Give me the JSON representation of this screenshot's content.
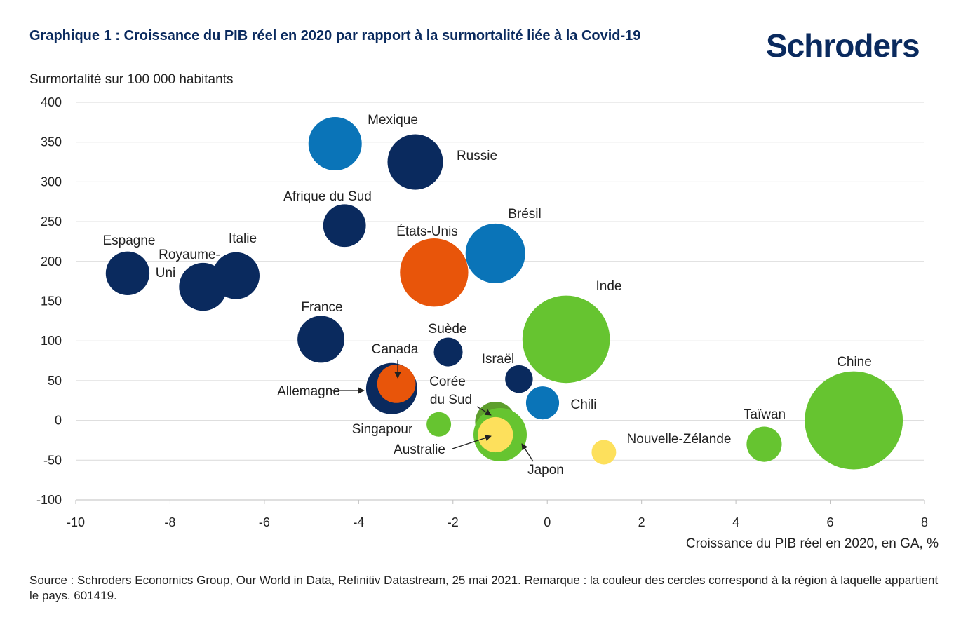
{
  "title": "Graphique 1 : Croissance du PIB réel en 2020 par rapport à la surmortalité liée à la Covid-19",
  "logo_text": "Schroders",
  "source": "Source : Schroders Economics Group, Our World in Data, Refinitiv Datastream, 25 mai 2021. Remarque : la couleur des cercles correspond à la région à laquelle appartient le pays. 601419.",
  "colors": {
    "navy": "#0a2a5e",
    "blue": "#0a74b8",
    "orange": "#e8550a",
    "green": "#66c430",
    "olive": "#5d9e2c",
    "yellow": "#fde05c",
    "grid": "#d9d9d9",
    "title": "#0a2a5e"
  },
  "chart_data": {
    "type": "scatter",
    "xlabel": "Croissance du PIB réel en 2020, en GA, %",
    "ylabel": "Surmortalité sur 100 000 habitants",
    "xlim": [
      -10,
      8
    ],
    "ylim": [
      -100,
      400
    ],
    "xticks": [
      "-10",
      "-8",
      "-6",
      "-4",
      "-2",
      "0",
      "2",
      "4",
      "6",
      "8"
    ],
    "yticks": [
      "400",
      "350",
      "300",
      "250",
      "200",
      "150",
      "100",
      "50",
      "0",
      "-50",
      "-100"
    ],
    "grid": true,
    "points": [
      {
        "name": "Mexique",
        "x": -4.5,
        "y": 348,
        "color": "blue",
        "size": 5
      },
      {
        "name": "Russie",
        "x": -2.8,
        "y": 325,
        "color": "navy",
        "size": 5.2
      },
      {
        "name": "Afrique du Sud",
        "x": -4.3,
        "y": 245,
        "color": "navy",
        "size": 4
      },
      {
        "name": "Brésil",
        "x": -1.1,
        "y": 210,
        "color": "blue",
        "size": 5.6
      },
      {
        "name": "États-Unis",
        "x": -2.4,
        "y": 186,
        "color": "orange",
        "size": 6.4
      },
      {
        "name": "Espagne",
        "x": -8.9,
        "y": 185,
        "color": "navy",
        "size": 4.1
      },
      {
        "name": "Italie",
        "x": -6.6,
        "y": 182,
        "color": "navy",
        "size": 4.4
      },
      {
        "name": "Royaume-Uni",
        "x": -7.3,
        "y": 168,
        "color": "navy",
        "size": 4.5
      },
      {
        "name": "Inde",
        "x": 0.4,
        "y": 102,
        "color": "green",
        "size": 8.2
      },
      {
        "name": "France",
        "x": -4.8,
        "y": 102,
        "color": "navy",
        "size": 4.4
      },
      {
        "name": "Suède",
        "x": -2.1,
        "y": 86,
        "color": "navy",
        "size": 2.7
      },
      {
        "name": "Israël",
        "x": -0.6,
        "y": 52,
        "color": "navy",
        "size": 2.6
      },
      {
        "name": "Allemagne",
        "x": -3.3,
        "y": 40,
        "color": "navy",
        "size": 4.8
      },
      {
        "name": "Canada",
        "x": -3.2,
        "y": 46,
        "color": "orange",
        "size": 3.6
      },
      {
        "name": "Chili",
        "x": -0.1,
        "y": 22,
        "color": "blue",
        "size": 3.1
      },
      {
        "name": "Chine",
        "x": 6.5,
        "y": 0,
        "color": "green",
        "size": 9.2
      },
      {
        "name": "Singapour",
        "x": -2.3,
        "y": -5,
        "color": "green",
        "size": 2.3
      },
      {
        "name": "Corée du Sud",
        "x": -1.1,
        "y": -2,
        "color": "olive",
        "size": 3.8
      },
      {
        "name": "Japon",
        "x": -1.0,
        "y": -18,
        "color": "green",
        "size": 5
      },
      {
        "name": "Australie",
        "x": -1.1,
        "y": -18,
        "color": "yellow",
        "size": 3.3
      },
      {
        "name": "Taïwan",
        "x": 4.6,
        "y": -30,
        "color": "green",
        "size": 3.3
      },
      {
        "name": "Nouvelle-Zélande",
        "x": 1.2,
        "y": -40,
        "color": "yellow",
        "size": 2.3
      }
    ],
    "labels": [
      {
        "text": "Mexique"
      },
      {
        "text": "Russie"
      },
      {
        "text": "Afrique du Sud"
      },
      {
        "text": "Brésil"
      },
      {
        "text": "États-Unis"
      },
      {
        "text": "Espagne"
      },
      {
        "text": "Italie"
      },
      {
        "text": "Royaume-"
      },
      {
        "text": "Uni"
      },
      {
        "text": "Inde"
      },
      {
        "text": "France"
      },
      {
        "text": "Suède"
      },
      {
        "text": "Israël"
      },
      {
        "text": "Canada"
      },
      {
        "text": "Allemagne"
      },
      {
        "text": "Corée"
      },
      {
        "text": "du Sud"
      },
      {
        "text": "Chili"
      },
      {
        "text": "Chine"
      },
      {
        "text": "Taïwan"
      },
      {
        "text": "Singapour"
      },
      {
        "text": "Nouvelle-Zélande"
      },
      {
        "text": "Australie"
      },
      {
        "text": "Japon"
      }
    ]
  }
}
